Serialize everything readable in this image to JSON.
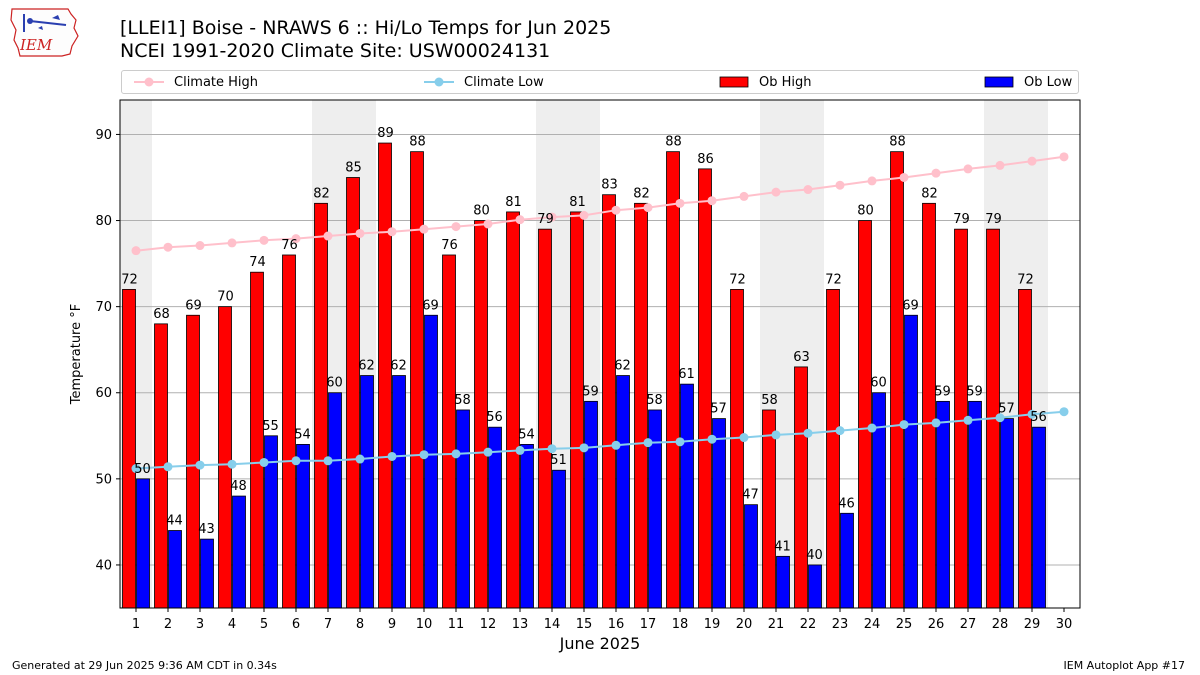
{
  "header": {
    "title_line1": "[LLEI1] Boise - NRAWS 6 :: Hi/Lo Temps for Jun 2025",
    "title_line2": "NCEI 1991-2020 Climate Site: USW00024131",
    "logo_text": "IEM"
  },
  "footer": {
    "generated": "Generated at 29 Jun 2025 9:36 AM CDT in 0.34s",
    "app": "IEM Autoplot App #17"
  },
  "colors": {
    "ob_high": "#ff0000",
    "ob_low": "#0000ff",
    "climate_high": "#ffc0cb",
    "climate_low": "#87ceeb",
    "weekend_shade": "#eeeeee",
    "grid": "#b0b0b0"
  },
  "chart_data": {
    "type": "bar",
    "xlabel": "June 2025",
    "ylabel": "Temperature °F",
    "ylim": [
      35,
      94
    ],
    "yticks": [
      40,
      50,
      60,
      70,
      80,
      90
    ],
    "grid": "horizontal",
    "legend_position": "top",
    "legend": [
      "Climate High",
      "Climate Low",
      "Ob High",
      "Ob Low"
    ],
    "categories": [
      "1",
      "2",
      "3",
      "4",
      "5",
      "6",
      "7",
      "8",
      "9",
      "10",
      "11",
      "12",
      "13",
      "14",
      "15",
      "16",
      "17",
      "18",
      "19",
      "20",
      "21",
      "22",
      "23",
      "24",
      "25",
      "26",
      "27",
      "28",
      "29",
      "30"
    ],
    "shaded_days": [
      1,
      7,
      8,
      14,
      15,
      21,
      22,
      28,
      29
    ],
    "series": [
      {
        "name": "Ob High",
        "kind": "bar",
        "values": [
          72,
          68,
          69,
          70,
          74,
          76,
          82,
          85,
          89,
          88,
          76,
          80,
          81,
          79,
          81,
          83,
          82,
          88,
          86,
          72,
          58,
          63,
          72,
          80,
          88,
          82,
          79,
          79,
          72,
          null
        ]
      },
      {
        "name": "Ob Low",
        "kind": "bar",
        "values": [
          50,
          44,
          43,
          48,
          55,
          54,
          60,
          62,
          62,
          69,
          58,
          56,
          54,
          51,
          59,
          62,
          58,
          61,
          57,
          47,
          41,
          40,
          46,
          60,
          69,
          59,
          59,
          57,
          56,
          null
        ]
      },
      {
        "name": "Climate High",
        "kind": "line",
        "values": [
          76.5,
          76.9,
          77.1,
          77.4,
          77.7,
          77.9,
          78.2,
          78.5,
          78.7,
          79.0,
          79.3,
          79.6,
          80.1,
          80.4,
          80.6,
          81.2,
          81.5,
          82.0,
          82.3,
          82.8,
          83.3,
          83.6,
          84.1,
          84.6,
          85.0,
          85.5,
          86.0,
          86.4,
          86.9,
          87.4
        ]
      },
      {
        "name": "Climate Low",
        "kind": "line",
        "values": [
          51.2,
          51.4,
          51.6,
          51.7,
          51.9,
          52.1,
          52.1,
          52.3,
          52.6,
          52.8,
          52.9,
          53.1,
          53.3,
          53.5,
          53.6,
          53.9,
          54.2,
          54.3,
          54.6,
          54.8,
          55.1,
          55.3,
          55.6,
          55.9,
          56.3,
          56.5,
          56.8,
          57.1,
          57.5,
          57.8
        ]
      }
    ]
  }
}
